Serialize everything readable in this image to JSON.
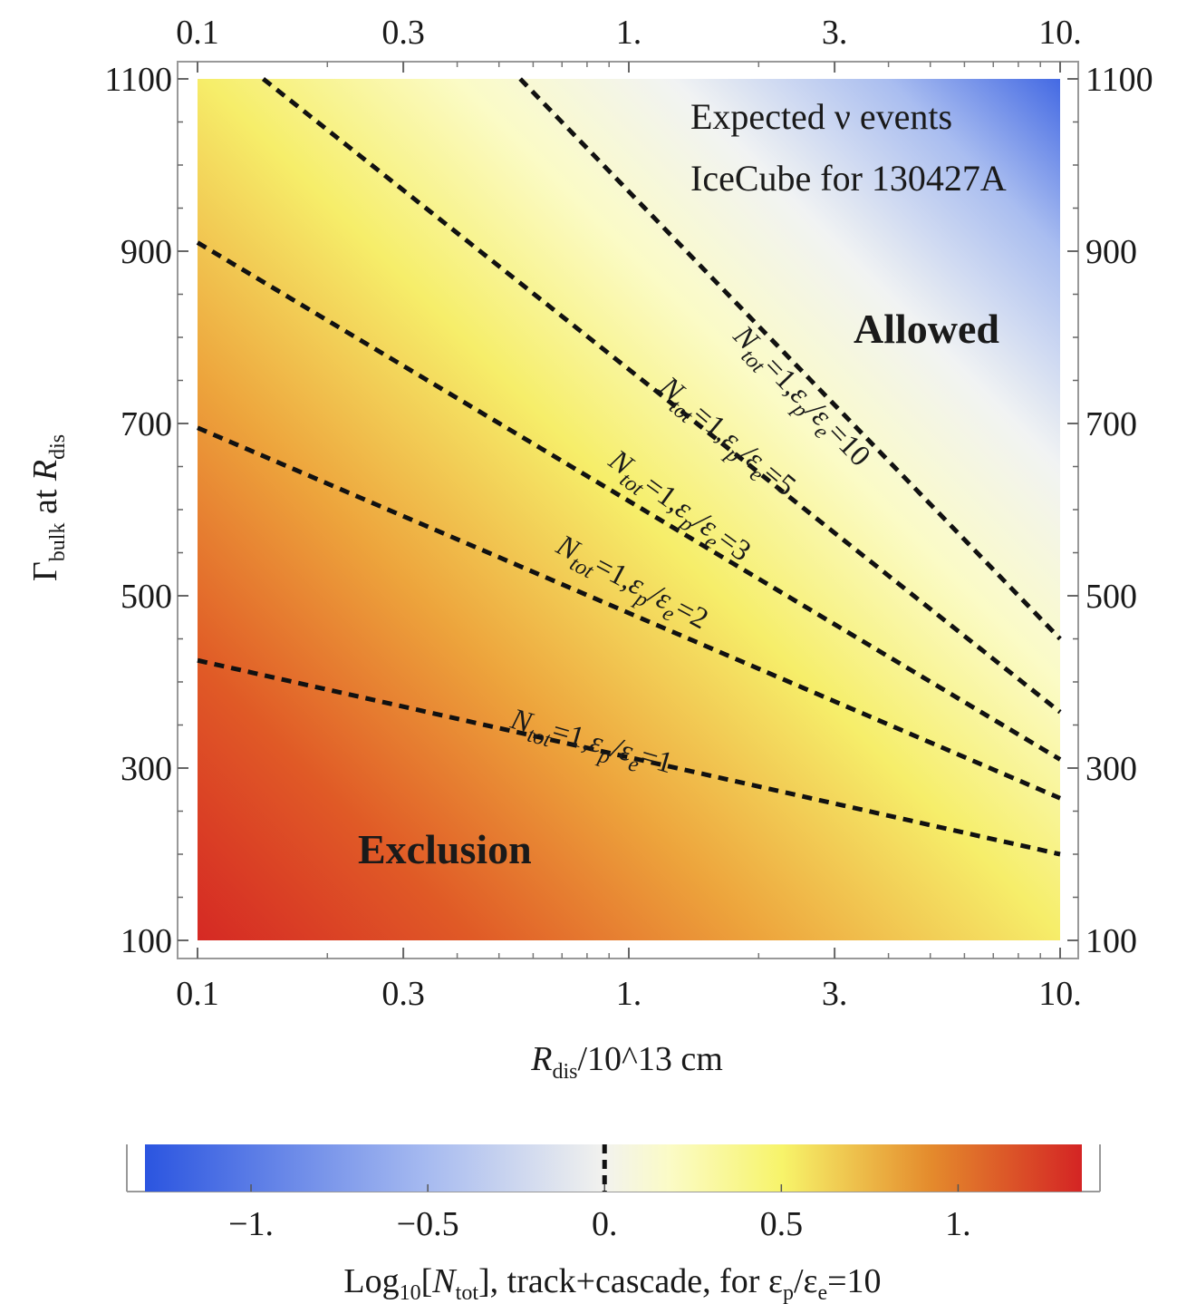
{
  "chart_data": {
    "type": "heatmap",
    "title": "",
    "xlabel": "R_dis/10^13 cm",
    "xlabel_parts": {
      "symbol": "R",
      "sub": "dis",
      "rest": "/10^13 cm"
    },
    "ylabel": "Γ_bulk at R_dis",
    "ylabel_parts": {
      "symbol": "Γ",
      "sub": "bulk",
      "mid": " at ",
      "symbol2": "R",
      "sub2": "dis"
    },
    "x_scale": "log",
    "xlim": [
      0.1,
      10
    ],
    "ylim": [
      100,
      1100
    ],
    "x_ticks": [
      0.1,
      0.3,
      1,
      3,
      10
    ],
    "x_tick_labels": [
      "0.1",
      "0.3",
      "1.",
      "3.",
      "10."
    ],
    "y_ticks": [
      100,
      300,
      500,
      700,
      900,
      1100
    ],
    "y_tick_labels": [
      "100",
      "300",
      "500",
      "700",
      "900",
      "1100"
    ],
    "annotations": [
      "Expected ν events",
      "IceCube for 130427A"
    ],
    "regions": [
      "Allowed",
      "Exclusion"
    ],
    "contours": [
      {
        "label": "N_tot=1,ε_p/ε_e=1",
        "x": [
          0.1,
          10
        ],
        "y": [
          425,
          200
        ]
      },
      {
        "label": "N_tot=1,ε_p/ε_e=2",
        "x": [
          0.1,
          10
        ],
        "y": [
          695,
          265
        ]
      },
      {
        "label": "N_tot=1,ε_p/ε_e=3",
        "x": [
          0.1,
          10
        ],
        "y": [
          910,
          310
        ]
      },
      {
        "label": "N_tot=1,ε_p/ε_e=5",
        "x": [
          0.142,
          10
        ],
        "y": [
          1100,
          365
        ]
      },
      {
        "label": "N_tot=1,ε_p/ε_e=10",
        "x": [
          0.56,
          10
        ],
        "y": [
          1100,
          450
        ]
      }
    ],
    "contour_label_parts": [
      {
        "lhs": "N",
        "lsub": "tot",
        "mid": "=1,",
        "e1": "ε",
        "e1sub": "p",
        "slash": "/",
        "e2": "ε",
        "e2sub": "e",
        "rhs": "=1"
      },
      {
        "lhs": "N",
        "lsub": "tot",
        "mid": "=1,",
        "e1": "ε",
        "e1sub": "p",
        "slash": "/",
        "e2": "ε",
        "e2sub": "e",
        "rhs": "=2"
      },
      {
        "lhs": "N",
        "lsub": "tot",
        "mid": "=1,",
        "e1": "ε",
        "e1sub": "p",
        "slash": "/",
        "e2": "ε",
        "e2sub": "e",
        "rhs": "=3"
      },
      {
        "lhs": "N",
        "lsub": "tot",
        "mid": "=1,",
        "e1": "ε",
        "e1sub": "p",
        "slash": "/",
        "e2": "ε",
        "e2sub": "e",
        "rhs": "=5"
      },
      {
        "lhs": "N",
        "lsub": "tot",
        "mid": "=1,",
        "e1": "ε",
        "e1sub": "p",
        "slash": "/",
        "e2": "ε",
        "e2sub": "e",
        "rhs": "=10"
      }
    ],
    "colorbar": {
      "range": [
        -1.3,
        1.35
      ],
      "ticks": [
        -1,
        -0.5,
        0,
        0.5,
        1
      ],
      "tick_labels": [
        "−1.",
        "−0.5",
        "0.",
        "0.5",
        "1."
      ],
      "marker_at": 0,
      "label": "Log10[N_tot], track+cascade, for ε_p/ε_e=10",
      "label_parts": {
        "a": "Log",
        "asub": "10",
        "b": "[",
        "n": "N",
        "nsub": "tot",
        "c": "], track+cascade, for ",
        "e1": "ε",
        "e1sub": "p",
        "slash": "/",
        "e2": "ε",
        "e2sub": "e",
        "d": "=10"
      },
      "colors": [
        "#2b55e0",
        "#f2f2ee",
        "#f7f46a",
        "#e48a2c",
        "#d42424"
      ]
    }
  }
}
